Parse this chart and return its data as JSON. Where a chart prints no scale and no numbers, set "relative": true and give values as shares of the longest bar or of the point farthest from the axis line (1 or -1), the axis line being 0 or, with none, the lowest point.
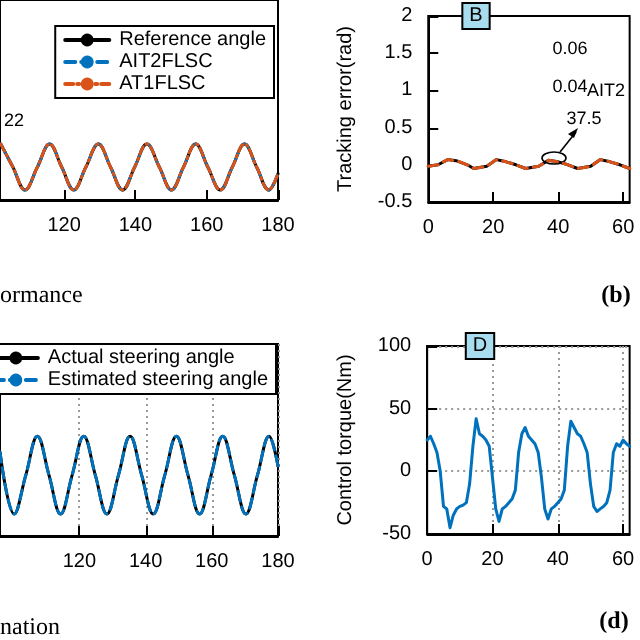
{
  "chart_data": [
    {
      "type": "line",
      "relative": true,
      "tick_labels": "x",
      "legend": "top right",
      "xlim": [
        102,
        180
      ],
      "xticks": [
        120,
        140,
        160,
        180
      ],
      "annotations": [
        "22",
        "ormance"
      ],
      "x": [
        102.2,
        105.6,
        109.0,
        112.5,
        115.9,
        119.3,
        122.7,
        126.1,
        129.6,
        133.0,
        136.4,
        139.8,
        143.2,
        146.7,
        150.1,
        153.5,
        156.9,
        160.3,
        163.8,
        167.2,
        170.6,
        174.0,
        177.4,
        180
      ],
      "series": [
        {
          "name": "Reference angle",
          "color": "#000000",
          "line_style": "solid",
          "values": [
            1,
            0.59,
            0.18,
            0.59,
            1,
            0.59,
            0.18,
            0.59,
            1,
            0.59,
            0.18,
            0.59,
            1,
            0.59,
            0.18,
            0.59,
            1,
            0.59,
            0.18,
            0.59,
            1,
            0.59,
            0.18,
            0.47
          ]
        },
        {
          "name": "AIT2FLSC",
          "color": "#0072bd",
          "line_style": "dashed",
          "values": [
            1,
            0.59,
            0.18,
            0.59,
            1,
            0.59,
            0.18,
            0.59,
            1,
            0.59,
            0.18,
            0.59,
            1,
            0.59,
            0.18,
            0.59,
            1,
            0.59,
            0.18,
            0.59,
            1,
            0.59,
            0.18,
            0.47
          ]
        },
        {
          "name": "AT1FLSC",
          "color": "#d95319",
          "line_style": "dotted",
          "values": [
            1,
            0.59,
            0.18,
            0.59,
            1,
            0.59,
            0.18,
            0.59,
            1,
            0.59,
            0.18,
            0.59,
            1,
            0.59,
            0.18,
            0.59,
            1,
            0.59,
            0.18,
            0.59,
            1,
            0.59,
            0.18,
            0.47
          ]
        }
      ]
    },
    {
      "type": "line",
      "ylabel": "Tracking error(rad)",
      "xlim": [
        0,
        62
      ],
      "xticks": [
        0,
        20,
        40,
        60
      ],
      "ylim": [
        -0.5,
        2
      ],
      "yticks": [
        -0.5,
        0,
        0.5,
        1,
        1.5,
        2
      ],
      "annotations": [
        "B",
        "0.06",
        "0.04",
        "AIT2",
        "37.5",
        "(b)"
      ],
      "x": [
        0,
        3,
        6,
        9,
        12,
        14,
        18,
        21,
        24,
        27,
        30,
        34,
        37,
        40,
        43,
        46,
        50,
        53,
        56,
        59,
        62
      ],
      "series": [
        {
          "color": "#000000",
          "line_style": "solid",
          "values": [
            -0.02,
            0.0,
            0.07,
            0.05,
            0.0,
            -0.05,
            -0.02,
            0.07,
            0.04,
            0.0,
            -0.05,
            -0.02,
            0.06,
            0.04,
            0.0,
            -0.05,
            -0.02,
            0.07,
            0.04,
            0.0,
            -0.05
          ]
        },
        {
          "color": "#d95319",
          "line_style": "dashed",
          "values": [
            -0.02,
            0.0,
            0.07,
            0.05,
            0.0,
            -0.05,
            -0.02,
            0.07,
            0.04,
            0.0,
            -0.05,
            -0.02,
            0.06,
            0.04,
            0.0,
            -0.05,
            -0.02,
            0.07,
            0.04,
            0.0,
            -0.05
          ]
        }
      ]
    },
    {
      "type": "line",
      "relative": true,
      "tick_labels": "x",
      "legend": "top right",
      "grid": "x",
      "xlim": [
        96,
        180
      ],
      "xticks": [
        120,
        140,
        160,
        180
      ],
      "annotations": [
        "nation"
      ],
      "x": [
        96,
        100.3,
        103.8,
        107.3,
        110.8,
        114.3,
        117.8,
        121.3,
        124.8,
        128.3,
        131.8,
        135.3,
        138.8,
        142.3,
        145.8,
        149.3,
        152.8,
        156.3,
        159.8,
        163.3,
        166.8,
        170.3,
        173.8,
        177.3,
        180
      ],
      "series": [
        {
          "name": "Actual steering angle",
          "color": "#000000",
          "line_style": "solid",
          "values": [
            0.84,
            0.22,
            0.61,
            1,
            0.61,
            0.22,
            0.61,
            1,
            0.61,
            0.22,
            0.61,
            1,
            0.61,
            0.22,
            0.61,
            1,
            0.61,
            0.22,
            0.61,
            1,
            0.61,
            0.22,
            0.61,
            1,
            0.7
          ]
        },
        {
          "name": "Estimated steering angle",
          "color": "#0072bd",
          "line_style": "dashed",
          "values": [
            0.84,
            0.22,
            0.61,
            1,
            0.61,
            0.22,
            0.61,
            1,
            0.61,
            0.22,
            0.61,
            1,
            0.61,
            0.22,
            0.61,
            1,
            0.61,
            0.22,
            0.61,
            1,
            0.61,
            0.22,
            0.61,
            1,
            0.7
          ]
        }
      ]
    },
    {
      "type": "line",
      "ylabel": "Control torque(Nm)",
      "grid": true,
      "xlim": [
        0,
        62
      ],
      "xticks": [
        0,
        20,
        40,
        60
      ],
      "ylim": [
        -50,
        100
      ],
      "yticks": [
        -50,
        0,
        50,
        100
      ],
      "annotations": [
        "D",
        "(d)"
      ],
      "x": [
        0,
        1,
        2,
        3,
        4,
        5,
        6,
        7,
        8,
        9,
        10,
        11,
        12,
        13,
        14,
        15,
        16,
        17,
        18,
        19,
        20,
        21,
        22,
        23,
        24,
        25,
        26,
        27,
        28,
        29,
        30,
        31,
        32,
        33,
        34,
        35,
        36,
        37,
        38,
        39,
        40,
        41,
        42,
        43,
        44,
        45,
        46,
        47,
        48,
        49,
        50,
        51,
        52,
        53,
        54,
        55,
        56,
        57,
        58,
        59,
        60,
        61,
        62
      ],
      "series": [
        {
          "color": "#0072bd",
          "line_style": "solid",
          "values": [
            25,
            28,
            22,
            15,
            0,
            -28,
            -30,
            -45,
            -35,
            -30,
            -28,
            -27,
            -25,
            -10,
            20,
            42,
            30,
            28,
            25,
            20,
            -5,
            -30,
            -40,
            -30,
            -28,
            -25,
            -22,
            -15,
            15,
            30,
            35,
            28,
            25,
            22,
            15,
            -5,
            -30,
            -38,
            -30,
            -28,
            -25,
            -22,
            -15,
            20,
            40,
            35,
            30,
            28,
            22,
            15,
            -10,
            -28,
            -32,
            -30,
            -28,
            -25,
            -15,
            15,
            22,
            20,
            25,
            22,
            20
          ]
        }
      ]
    }
  ]
}
